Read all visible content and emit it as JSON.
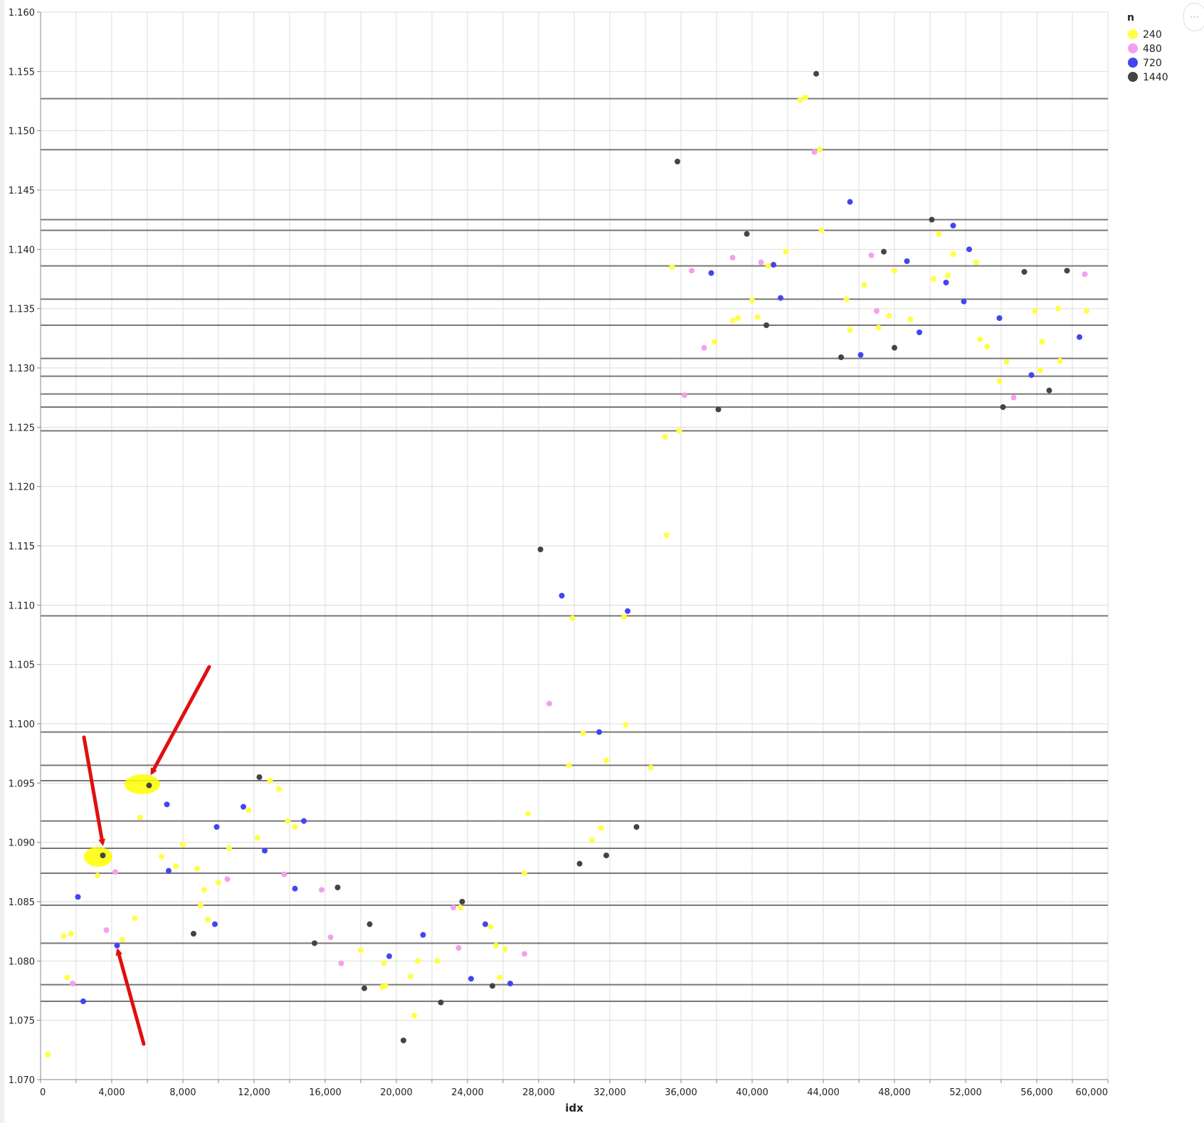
{
  "chart_data": {
    "type": "scatter",
    "title": "",
    "xlabel": "idx",
    "ylabel": "",
    "xlim": [
      0,
      60000
    ],
    "ylim": [
      1.07,
      1.16
    ],
    "x_ticks": [
      "0",
      "4,000",
      "8,000",
      "12,000",
      "16,000",
      "20,000",
      "24,000",
      "28,000",
      "32,000",
      "36,000",
      "40,000",
      "44,000",
      "48,000",
      "52,000",
      "56,000",
      "60,000"
    ],
    "y_ticks": [
      "1.070",
      "1.075",
      "1.080",
      "1.085",
      "1.090",
      "1.095",
      "1.100",
      "1.105",
      "1.110",
      "1.115",
      "1.120",
      "1.125",
      "1.130",
      "1.135",
      "1.140",
      "1.145",
      "1.150",
      "1.155",
      "1.160"
    ],
    "grid": true,
    "legend": {
      "title": "n",
      "position": "top-right",
      "entries": [
        {
          "label": "240",
          "color": "#ffff44"
        },
        {
          "label": "480",
          "color": "#f4a0f0"
        },
        {
          "label": "720",
          "color": "#4444f0"
        },
        {
          "label": "1440",
          "color": "#444444"
        }
      ]
    },
    "horizontal_lines": [
      1.1527,
      1.1484,
      1.1425,
      1.1416,
      1.1386,
      1.1358,
      1.1336,
      1.1308,
      1.1293,
      1.1278,
      1.1267,
      1.1247,
      1.1091,
      1.0993,
      1.0965,
      1.0952,
      1.0918,
      1.0895,
      1.0874,
      1.0847,
      1.0815,
      1.078,
      1.0766
    ],
    "series": [
      {
        "name": "240",
        "color": "#ffff44",
        "points": [
          [
            400,
            1.0721
          ],
          [
            1300,
            1.0821
          ],
          [
            1500,
            1.0786
          ],
          [
            1700,
            1.0823
          ],
          [
            3200,
            1.0872
          ],
          [
            4600,
            1.0818
          ],
          [
            5300,
            1.0836
          ],
          [
            5600,
            1.0921
          ],
          [
            6800,
            1.0888
          ],
          [
            7600,
            1.088
          ],
          [
            8000,
            1.0898
          ],
          [
            8800,
            1.0878
          ],
          [
            9000,
            1.0847
          ],
          [
            9200,
            1.086
          ],
          [
            9400,
            1.0835
          ],
          [
            10000,
            1.0866
          ],
          [
            10600,
            1.0895
          ],
          [
            11700,
            1.0927
          ],
          [
            12200,
            1.0904
          ],
          [
            12900,
            1.0952
          ],
          [
            13400,
            1.0945
          ],
          [
            13900,
            1.0918
          ],
          [
            14300,
            1.0913
          ],
          [
            18000,
            1.0809
          ],
          [
            19200,
            1.0778
          ],
          [
            19300,
            1.0798
          ],
          [
            19400,
            1.0779
          ],
          [
            20800,
            1.0787
          ],
          [
            21000,
            1.0754
          ],
          [
            21200,
            1.08
          ],
          [
            22300,
            1.08
          ],
          [
            23600,
            1.0845
          ],
          [
            25300,
            1.0829
          ],
          [
            25600,
            1.0813
          ],
          [
            25800,
            1.0786
          ],
          [
            26100,
            1.081
          ],
          [
            27200,
            1.0874
          ],
          [
            27400,
            1.0924
          ],
          [
            29700,
            1.0965
          ],
          [
            29900,
            1.1089
          ],
          [
            30500,
            1.0992
          ],
          [
            31000,
            1.0902
          ],
          [
            31500,
            1.0912
          ],
          [
            31800,
            1.0969
          ],
          [
            32800,
            1.109
          ],
          [
            32900,
            1.0999
          ],
          [
            34300,
            1.0963
          ],
          [
            35100,
            1.1242
          ],
          [
            35200,
            1.1159
          ],
          [
            35500,
            1.1385
          ],
          [
            35900,
            1.1247
          ],
          [
            37900,
            1.1322
          ],
          [
            38900,
            1.134
          ],
          [
            39200,
            1.1342
          ],
          [
            40000,
            1.1357
          ],
          [
            40300,
            1.1343
          ],
          [
            40900,
            1.1386
          ],
          [
            41900,
            1.1398
          ],
          [
            42700,
            1.1526
          ],
          [
            43000,
            1.1528
          ],
          [
            43800,
            1.1484
          ],
          [
            43900,
            1.1416
          ],
          [
            45300,
            1.1358
          ],
          [
            45500,
            1.1332
          ],
          [
            46300,
            1.137
          ],
          [
            47100,
            1.1334
          ],
          [
            47700,
            1.1344
          ],
          [
            48000,
            1.1382
          ],
          [
            48900,
            1.1341
          ],
          [
            50200,
            1.1375
          ],
          [
            50500,
            1.1413
          ],
          [
            51000,
            1.1378
          ],
          [
            51300,
            1.1396
          ],
          [
            52600,
            1.1389
          ],
          [
            52800,
            1.1324
          ],
          [
            53200,
            1.1318
          ],
          [
            53900,
            1.1289
          ],
          [
            54300,
            1.1305
          ],
          [
            55900,
            1.1348
          ],
          [
            56200,
            1.1298
          ],
          [
            56300,
            1.1322
          ],
          [
            57200,
            1.135
          ],
          [
            57300,
            1.1306
          ],
          [
            58800,
            1.1348
          ]
        ]
      },
      {
        "name": "480",
        "color": "#f4a0f0",
        "points": [
          [
            1800,
            1.0781
          ],
          [
            3700,
            1.0826
          ],
          [
            4200,
            1.0875
          ],
          [
            10500,
            1.0869
          ],
          [
            13700,
            1.0873
          ],
          [
            15800,
            1.086
          ],
          [
            16300,
            1.082
          ],
          [
            16900,
            1.0798
          ],
          [
            23200,
            1.0845
          ],
          [
            23500,
            1.0811
          ],
          [
            27200,
            1.0806
          ],
          [
            28600,
            1.1017
          ],
          [
            36200,
            1.1277
          ],
          [
            36600,
            1.1382
          ],
          [
            37300,
            1.1317
          ],
          [
            38900,
            1.1393
          ],
          [
            40500,
            1.1389
          ],
          [
            43500,
            1.1482
          ],
          [
            46700,
            1.1395
          ],
          [
            47000,
            1.1348
          ],
          [
            54700,
            1.1275
          ],
          [
            58700,
            1.1379
          ]
        ]
      },
      {
        "name": "720",
        "color": "#4444f0",
        "points": [
          [
            2100,
            1.0854
          ],
          [
            2400,
            1.0766
          ],
          [
            4300,
            1.0813
          ],
          [
            7100,
            1.0932
          ],
          [
            7200,
            1.0876
          ],
          [
            9800,
            1.0831
          ],
          [
            9900,
            1.0913
          ],
          [
            11400,
            1.093
          ],
          [
            12600,
            1.0893
          ],
          [
            14300,
            1.0861
          ],
          [
            14800,
            1.0918
          ],
          [
            19600,
            1.0804
          ],
          [
            21500,
            1.0822
          ],
          [
            24200,
            1.0785
          ],
          [
            25000,
            1.0831
          ],
          [
            26400,
            1.0781
          ],
          [
            29300,
            1.1108
          ],
          [
            31400,
            1.0993
          ],
          [
            33000,
            1.1095
          ],
          [
            37700,
            1.138
          ],
          [
            41200,
            1.1387
          ],
          [
            41600,
            1.1359
          ],
          [
            45500,
            1.144
          ],
          [
            46100,
            1.1311
          ],
          [
            48700,
            1.139
          ],
          [
            49400,
            1.133
          ],
          [
            50900,
            1.1372
          ],
          [
            51300,
            1.142
          ],
          [
            51900,
            1.1356
          ],
          [
            52200,
            1.14
          ],
          [
            53900,
            1.1342
          ],
          [
            55700,
            1.1294
          ],
          [
            58400,
            1.1326
          ]
        ]
      },
      {
        "name": "1440",
        "color": "#444444",
        "points": [
          [
            3500,
            1.0889
          ],
          [
            6100,
            1.0948
          ],
          [
            8600,
            1.0823
          ],
          [
            12300,
            1.0955
          ],
          [
            15400,
            1.0815
          ],
          [
            16700,
            1.0862
          ],
          [
            18200,
            1.0777
          ],
          [
            18500,
            1.0831
          ],
          [
            20400,
            1.0733
          ],
          [
            22500,
            1.0765
          ],
          [
            23700,
            1.085
          ],
          [
            25400,
            1.0779
          ],
          [
            28100,
            1.1147
          ],
          [
            30300,
            1.0882
          ],
          [
            31800,
            1.0889
          ],
          [
            33500,
            1.0913
          ],
          [
            35800,
            1.1474
          ],
          [
            38100,
            1.1265
          ],
          [
            39700,
            1.1413
          ],
          [
            40800,
            1.1336
          ],
          [
            43600,
            1.1548
          ],
          [
            45000,
            1.1309
          ],
          [
            47400,
            1.1398
          ],
          [
            48000,
            1.1317
          ],
          [
            50100,
            1.1425
          ],
          [
            54100,
            1.1267
          ],
          [
            55300,
            1.1381
          ],
          [
            56700,
            1.1281
          ],
          [
            57700,
            1.1382
          ]
        ]
      }
    ]
  }
}
